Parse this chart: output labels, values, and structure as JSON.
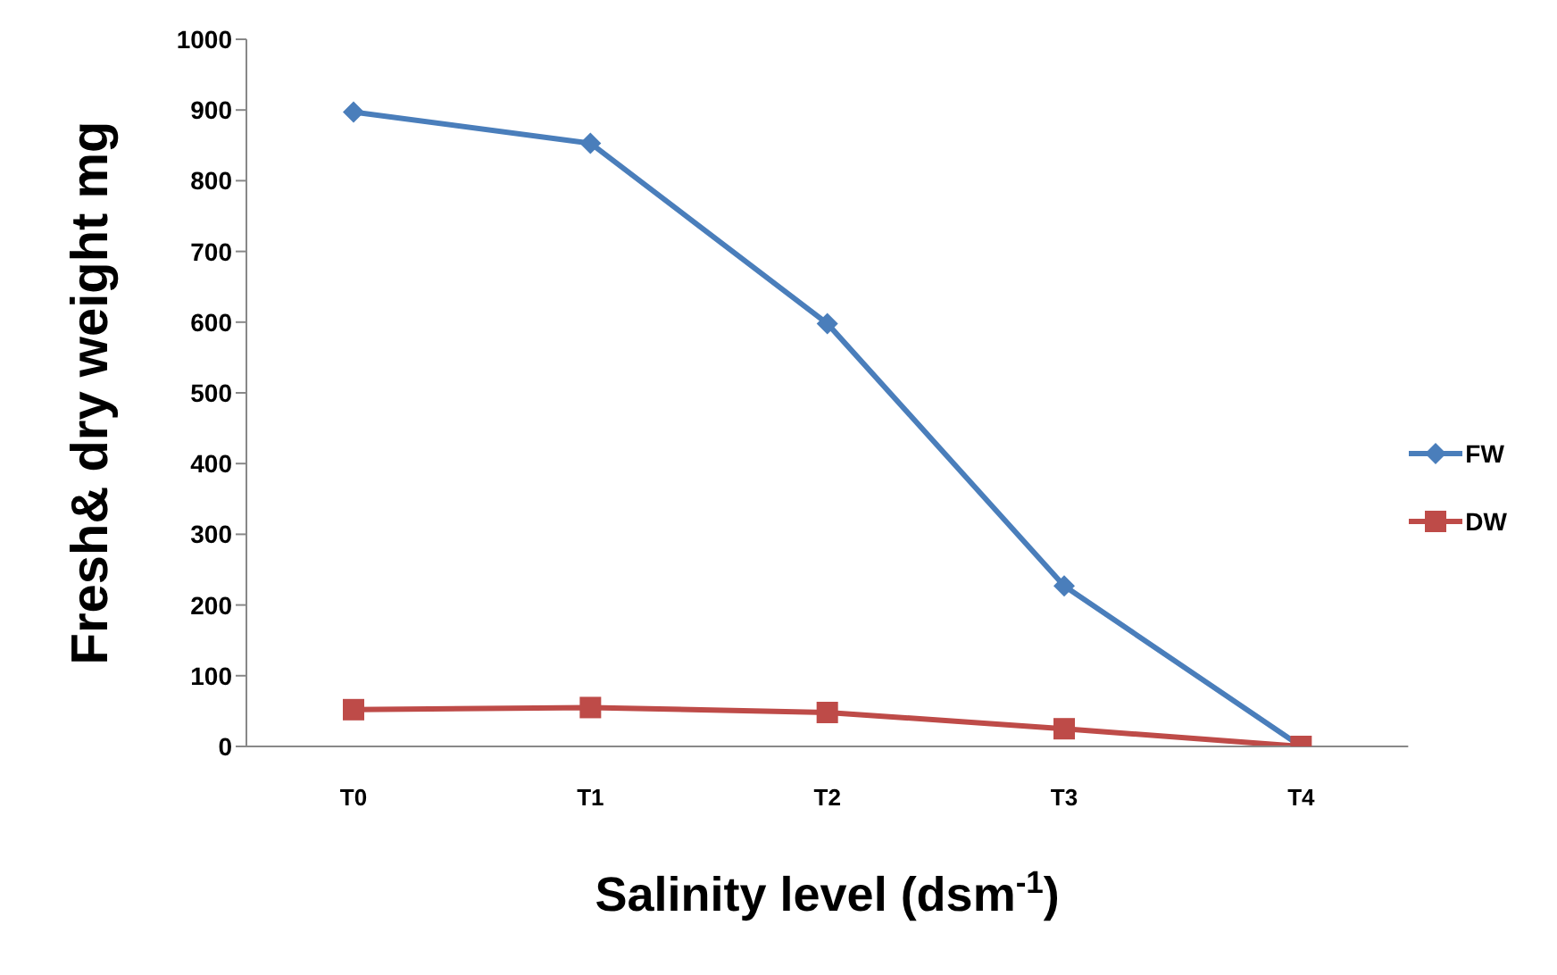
{
  "chart_data": {
    "type": "line",
    "xlabel": "Salinity level (dsm$^{-1}$)",
    "ylabel": "Fresh& dry weight mg",
    "categories": [
      "T0",
      "T1",
      "T2",
      "T3",
      "T4"
    ],
    "series": [
      {
        "name": "FW",
        "color": "#4a7ebb",
        "values": [
          897,
          853,
          598,
          227,
          0
        ],
        "marker": "diamond"
      },
      {
        "name": "DW",
        "color": "#be4b48",
        "values": [
          52,
          55,
          48,
          25,
          0
        ],
        "marker": "square"
      }
    ],
    "ylim": [
      0,
      1000
    ],
    "yticks": [
      0,
      100,
      200,
      300,
      400,
      500,
      600,
      700,
      800,
      900,
      1000
    ],
    "grid": false,
    "legend": "right"
  }
}
